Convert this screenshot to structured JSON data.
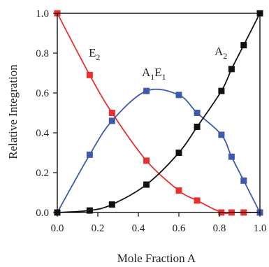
{
  "chart_data": {
    "type": "scatter",
    "xlabel": "Mole Fraction A",
    "ylabel": "Relative Integration",
    "xlim": [
      0.0,
      1.0
    ],
    "ylim": [
      0.0,
      1.0
    ],
    "xticks": [
      "0.0",
      "0.2",
      "0.4",
      "0.6",
      "0.8",
      "1.0"
    ],
    "yticks": [
      "0.0",
      "0.2",
      "0.4",
      "0.6",
      "0.8",
      "1.0"
    ],
    "grid": false,
    "legend": "none",
    "series": [
      {
        "name": "E",
        "sub": "2",
        "color": "#e8312f",
        "points": [
          {
            "x": 0.0,
            "y": 1.0
          },
          {
            "x": 0.16,
            "y": 0.69
          },
          {
            "x": 0.27,
            "y": 0.5
          },
          {
            "x": 0.44,
            "y": 0.26
          },
          {
            "x": 0.6,
            "y": 0.11
          },
          {
            "x": 0.69,
            "y": 0.06
          },
          {
            "x": 0.81,
            "y": 0.0
          },
          {
            "x": 0.86,
            "y": 0.0
          },
          {
            "x": 0.92,
            "y": 0.0
          },
          {
            "x": 1.0,
            "y": 0.0
          }
        ]
      },
      {
        "name": "A",
        "sub": "1",
        "name2": "E",
        "sub2": "1",
        "color": "#3e5aad",
        "points": [
          {
            "x": 0.0,
            "y": 0.0
          },
          {
            "x": 0.16,
            "y": 0.29
          },
          {
            "x": 0.27,
            "y": 0.46
          },
          {
            "x": 0.44,
            "y": 0.61
          },
          {
            "x": 0.6,
            "y": 0.59
          },
          {
            "x": 0.69,
            "y": 0.5
          },
          {
            "x": 0.81,
            "y": 0.39
          },
          {
            "x": 0.86,
            "y": 0.28
          },
          {
            "x": 0.92,
            "y": 0.16
          },
          {
            "x": 1.0,
            "y": 0.0
          }
        ]
      },
      {
        "name": "A",
        "sub": "2",
        "color": "#111111",
        "points": [
          {
            "x": 0.0,
            "y": 0.0
          },
          {
            "x": 0.16,
            "y": 0.01
          },
          {
            "x": 0.27,
            "y": 0.04
          },
          {
            "x": 0.44,
            "y": 0.14
          },
          {
            "x": 0.6,
            "y": 0.3
          },
          {
            "x": 0.69,
            "y": 0.43
          },
          {
            "x": 0.81,
            "y": 0.61
          },
          {
            "x": 0.86,
            "y": 0.72
          },
          {
            "x": 0.92,
            "y": 0.84
          },
          {
            "x": 1.0,
            "y": 1.0
          }
        ]
      }
    ]
  }
}
